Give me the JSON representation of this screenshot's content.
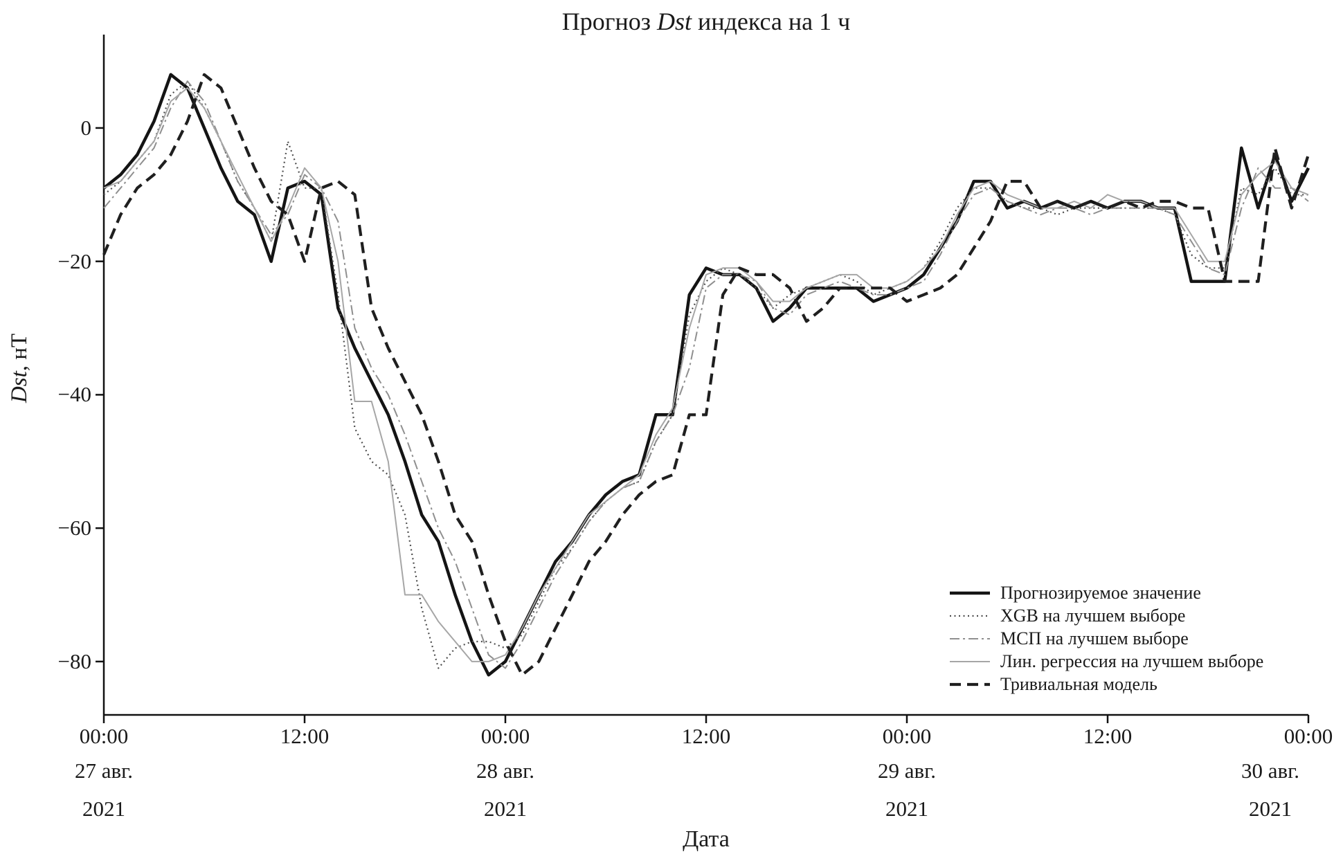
{
  "title": {
    "prefix": "Прогноз ",
    "italic": "Dst",
    "suffix": " индекса на 1 ч"
  },
  "y_axis": {
    "label_italic": "Dst",
    "label_suffix": ", нТ",
    "tick_values": [
      0,
      -20,
      -40,
      -60,
      -80
    ],
    "tick_labels": [
      "0",
      "−20",
      "−40",
      "−60",
      "−80"
    ]
  },
  "x_axis": {
    "label": "Дата",
    "tick_hours": [
      0,
      12,
      24,
      36,
      48,
      60,
      72
    ],
    "tick_labels": [
      "00:00",
      "12:00",
      "00:00",
      "12:00",
      "00:00",
      "12:00",
      "00:00"
    ],
    "date_labels": [
      {
        "hour": 0,
        "month": "27 авг.",
        "year": "2021"
      },
      {
        "hour": 24,
        "month": "28 авг.",
        "year": "2021"
      },
      {
        "hour": 48,
        "month": "29 авг.",
        "year": "2021"
      },
      {
        "hour": 72,
        "month": "30 авг.",
        "year": "2021"
      }
    ]
  },
  "legend": {
    "items": [
      "Прогнозируемое значение",
      "XGB на лучшем выборе",
      "МСП на лучшем выборе",
      "Лин. регрессия на лучшем выборе",
      "Тривиальная модель"
    ]
  },
  "chart_data": {
    "type": "line",
    "title": "Прогноз Dst индекса на 1 ч",
    "xlabel": "Дата",
    "ylabel": "Dst, нТ",
    "x_unit": "hours from 2021-08-27 00:00 to 2021-08-30 00:00, hourly",
    "x_range": [
      0,
      72
    ],
    "ylim": [
      -88,
      14
    ],
    "grid": false,
    "legend_position": "lower right",
    "x_tick_hours": [
      0,
      12,
      24,
      36,
      48,
      60,
      72
    ],
    "x_tick_labels": [
      "00:00",
      "12:00",
      "00:00",
      "12:00",
      "00:00",
      "12:00",
      "00:00"
    ],
    "y_ticks": [
      0,
      -20,
      -40,
      -60,
      -80
    ],
    "series": [
      {
        "name": "Прогнозируемое значение",
        "style": "solid-thick",
        "color": "#141414",
        "width": 4.5,
        "dash": "",
        "values": [
          -9,
          -7,
          -4,
          1,
          8,
          6,
          0,
          -6,
          -11,
          -13,
          -20,
          -9,
          -8,
          -10,
          -27,
          -33,
          -38,
          -43,
          -50,
          -58,
          -62,
          -70,
          -77,
          -82,
          -80,
          -75,
          -70,
          -65,
          -62,
          -58,
          -55,
          -53,
          -52,
          -43,
          -43,
          -25,
          -21,
          -22,
          -22,
          -24,
          -29,
          -27,
          -24,
          -24,
          -24,
          -24,
          -26,
          -25,
          -24,
          -22,
          -18,
          -14,
          -8,
          -8,
          -12,
          -11,
          -12,
          -11,
          -12,
          -11,
          -12,
          -11,
          -11,
          -12,
          -12,
          -23,
          -23,
          -23,
          -3,
          -12,
          -4,
          -11,
          -6
        ]
      },
      {
        "name": "XGB на лучшем выборе",
        "style": "dotted",
        "color": "#4d4d4d",
        "width": 2.2,
        "dash": "2 4.5",
        "values": [
          -10,
          -8,
          -5,
          -2,
          5,
          7,
          3,
          -2,
          -8,
          -12,
          -17,
          -2,
          -9,
          -9,
          -25,
          -45,
          -50,
          -52,
          -58,
          -72,
          -81,
          -78,
          -77,
          -77,
          -78,
          -76,
          -71,
          -66,
          -63,
          -59,
          -56,
          -54,
          -53,
          -47,
          -43,
          -28,
          -23,
          -21,
          -22,
          -24,
          -27,
          -25,
          -24,
          -23,
          -22,
          -23,
          -25,
          -24,
          -23,
          -21,
          -17,
          -12,
          -9,
          -9,
          -11,
          -12,
          -12,
          -13,
          -12,
          -12,
          -12,
          -12,
          -12,
          -12,
          -13,
          -19,
          -21,
          -21,
          -9,
          -10,
          -6,
          -10,
          -10
        ]
      },
      {
        "name": "МСП на лучшем выборе",
        "style": "dashdot",
        "color": "#8f8f8f",
        "width": 2,
        "dash": "14 5 3 5",
        "values": [
          -12,
          -9,
          -6,
          -3,
          3,
          7,
          4,
          -2,
          -8,
          -12,
          -16,
          -13,
          -7,
          -9,
          -14,
          -30,
          -36,
          -40,
          -46,
          -53,
          -60,
          -65,
          -72,
          -79,
          -81,
          -77,
          -72,
          -67,
          -63,
          -59,
          -56,
          -54,
          -53,
          -47,
          -43,
          -36,
          -24,
          -22,
          -22,
          -23,
          -27,
          -28,
          -25,
          -24,
          -23,
          -24,
          -25,
          -25,
          -24,
          -23,
          -19,
          -14,
          -10,
          -9,
          -11,
          -12,
          -13,
          -12,
          -12,
          -13,
          -12,
          -12,
          -12,
          -12,
          -13,
          -17,
          -21,
          -22,
          -12,
          -6,
          -9,
          -9,
          -11
        ]
      },
      {
        "name": "Лин. регрессия на лучшем выборе",
        "style": "solid-thin",
        "color": "#a6a6a6",
        "width": 2,
        "dash": "",
        "values": [
          -9,
          -8,
          -5,
          -2,
          4,
          6,
          3,
          -2,
          -7,
          -12,
          -17,
          -12,
          -6,
          -9,
          -20,
          -41,
          -41,
          -50,
          -70,
          -70,
          -74,
          -77,
          -80,
          -80,
          -79,
          -75,
          -70,
          -66,
          -62,
          -58,
          -56,
          -54,
          -52,
          -46,
          -42,
          -30,
          -22,
          -21,
          -21,
          -23,
          -26,
          -26,
          -24,
          -23,
          -22,
          -22,
          -24,
          -24,
          -23,
          -21,
          -18,
          -13,
          -9,
          -8,
          -10,
          -11,
          -12,
          -12,
          -11,
          -12,
          -10,
          -11,
          -11,
          -12,
          -12,
          -16,
          -20,
          -20,
          -10,
          -7,
          -5,
          -9,
          -10
        ]
      },
      {
        "name": "Тривиальная модель",
        "style": "dashed-thick",
        "color": "#1f1f1f",
        "width": 4.2,
        "dash": "16 9",
        "values": [
          -19,
          -13,
          -9,
          -7,
          -4,
          1,
          8,
          6,
          0,
          -6,
          -11,
          -13,
          -20,
          -9,
          -8,
          -10,
          -27,
          -33,
          -38,
          -43,
          -50,
          -58,
          -62,
          -70,
          -77,
          -82,
          -80,
          -75,
          -70,
          -65,
          -62,
          -58,
          -55,
          -53,
          -52,
          -43,
          -43,
          -25,
          -21,
          -22,
          -22,
          -24,
          -29,
          -27,
          -24,
          -24,
          -24,
          -24,
          -26,
          -25,
          -24,
          -22,
          -18,
          -14,
          -8,
          -8,
          -12,
          -11,
          -12,
          -11,
          -12,
          -11,
          -12,
          -11,
          -11,
          -12,
          -12,
          -23,
          -23,
          -23,
          -3,
          -12,
          -4
        ]
      }
    ]
  }
}
